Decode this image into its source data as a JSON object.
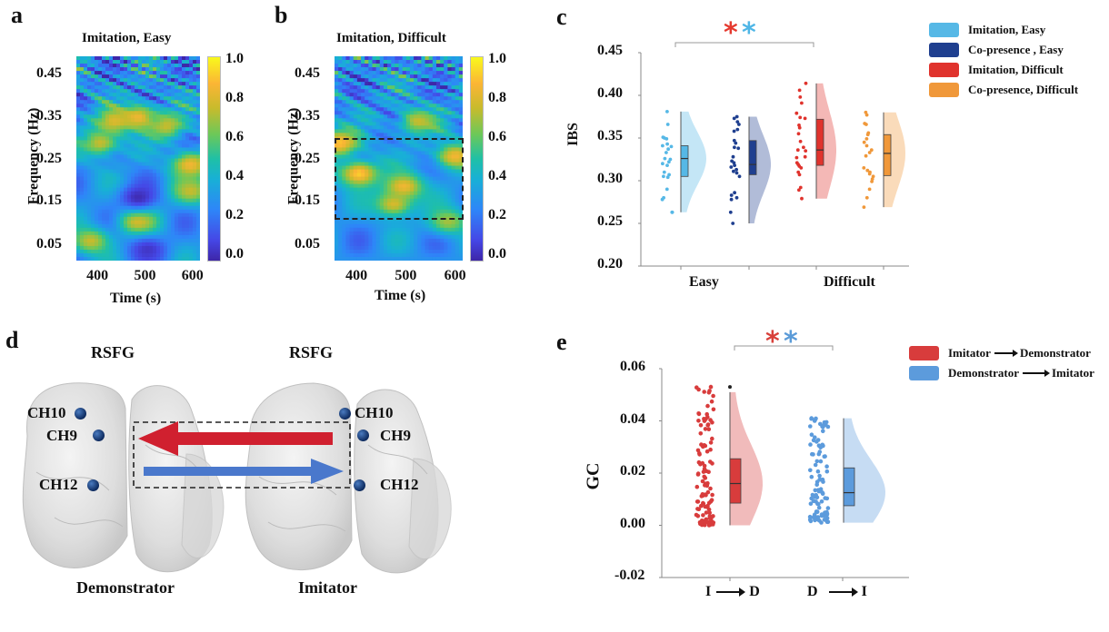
{
  "panels": {
    "a": {
      "label": "a",
      "title": "Imitation, Easy",
      "ylabel": "Frequency (Hz)",
      "xlabel": "Time (s)",
      "yticks": [
        "0.45",
        "0.35",
        "0.25",
        "0.15",
        "0.05"
      ],
      "xticks": [
        "400",
        "500",
        "600"
      ],
      "colorbar_ticks": [
        "1.0",
        "0.8",
        "0.6",
        "0.4",
        "0.2",
        "0.0"
      ]
    },
    "b": {
      "label": "b",
      "title": "Imitation, Difficult",
      "ylabel": "Frequency (Hz)",
      "xlabel": "Time (s)",
      "yticks": [
        "0.45",
        "0.35",
        "0.25",
        "0.15",
        "0.05"
      ],
      "xticks": [
        "400",
        "500",
        "600"
      ],
      "colorbar_ticks": [
        "1.0",
        "0.8",
        "0.6",
        "0.4",
        "0.2",
        "0.0"
      ],
      "highlight_band_hz": [
        0.11,
        0.3
      ]
    },
    "c": {
      "label": "c",
      "ylabel": "IBS",
      "yticks": [
        "0.45",
        "0.40",
        "0.35",
        "0.30",
        "0.25",
        "0.20"
      ],
      "categories": [
        "Easy",
        "Difficult"
      ],
      "significance": {
        "marks": [
          "*",
          "*"
        ],
        "colors": [
          "#e53a2f",
          "#4fb6e6"
        ]
      },
      "legend": [
        {
          "label": "Imitation, Easy",
          "color": "#56b8e6"
        },
        {
          "label": "Co-presence , Easy",
          "color": "#1f3f8f"
        },
        {
          "label": "Imitation, Difficult",
          "color": "#e0332d"
        },
        {
          "label": "Co-presence, Difficult",
          "color": "#f0983a"
        }
      ]
    },
    "d": {
      "label": "d",
      "region_left": "RSFG",
      "region_right": "RSFG",
      "role_left": "Demonstrator",
      "role_right": "Imitator",
      "channels_left": [
        "CH10",
        "CH9",
        "CH12"
      ],
      "channels_right": [
        "CH10",
        "CH9",
        "CH12"
      ],
      "arrow_colors": {
        "imitator_to_demonstrator": "#d0202f",
        "demonstrator_to_imitator": "#4a78cc"
      }
    },
    "e": {
      "label": "e",
      "ylabel": "GC",
      "yticks": [
        "0.06",
        "0.04",
        "0.02",
        "0.00",
        "-0.02"
      ],
      "categories": [
        {
          "from": "I",
          "to": "D"
        },
        {
          "from": "D",
          "to": "I"
        }
      ],
      "significance": {
        "marks": [
          "*",
          "*"
        ],
        "colors": [
          "#d8403a",
          "#5b9bd8"
        ]
      },
      "legend": [
        {
          "from": "Imitator",
          "to": "Demonstrator",
          "color": "#d83c3c"
        },
        {
          "from": "Demonstrator",
          "to": "Imitator",
          "color": "#5c9bdc"
        }
      ]
    }
  },
  "chart_data": [
    {
      "id": "a",
      "type": "heatmap",
      "title": "Imitation, Easy",
      "xlabel": "Time (s)",
      "ylabel": "Frequency (Hz)",
      "xlim": [
        350,
        610
      ],
      "ylim": [
        0.02,
        0.49
      ],
      "clim": [
        0.0,
        1.0
      ],
      "colormap": "parula",
      "features": [
        {
          "t": 480,
          "f": 0.35,
          "v": 0.85
        },
        {
          "t": 430,
          "f": 0.34,
          "v": 0.8
        },
        {
          "t": 540,
          "f": 0.33,
          "v": 0.75
        },
        {
          "t": 590,
          "f": 0.24,
          "v": 0.85
        },
        {
          "t": 400,
          "f": 0.29,
          "v": 0.75
        },
        {
          "t": 480,
          "f": 0.11,
          "v": 0.8
        },
        {
          "t": 590,
          "f": 0.18,
          "v": 0.75
        },
        {
          "t": 380,
          "f": 0.065,
          "v": 0.75
        },
        {
          "t": 480,
          "f": 0.165,
          "v": 0.02
        },
        {
          "t": 500,
          "f": 0.045,
          "v": 0.05
        }
      ]
    },
    {
      "id": "b",
      "type": "heatmap",
      "title": "Imitation, Difficult",
      "xlabel": "Time (s)",
      "ylabel": "Frequency (Hz)",
      "xlim": [
        350,
        610
      ],
      "ylim": [
        0.02,
        0.49
      ],
      "clim": [
        0.0,
        1.0
      ],
      "colormap": "parula",
      "features": [
        {
          "t": 400,
          "f": 0.22,
          "v": 0.92
        },
        {
          "t": 490,
          "f": 0.19,
          "v": 0.85
        },
        {
          "t": 470,
          "f": 0.15,
          "v": 0.78
        },
        {
          "t": 360,
          "f": 0.29,
          "v": 0.9
        },
        {
          "t": 595,
          "f": 0.26,
          "v": 0.85
        },
        {
          "t": 520,
          "f": 0.34,
          "v": 0.75
        },
        {
          "t": 580,
          "f": 0.11,
          "v": 0.7
        }
      ]
    },
    {
      "id": "c",
      "type": "raincloud",
      "ylabel": "IBS",
      "ylim": [
        0.2,
        0.45
      ],
      "categories": [
        "Easy",
        "Difficult"
      ],
      "series": [
        {
          "name": "Imitation, Easy",
          "category": "Easy",
          "color": "#56b8e6",
          "box": {
            "q1": 0.305,
            "median": 0.326,
            "q3": 0.341,
            "min": 0.263,
            "max": 0.381
          },
          "points": [
            0.381,
            0.366,
            0.351,
            0.35,
            0.349,
            0.343,
            0.341,
            0.34,
            0.337,
            0.333,
            0.326,
            0.325,
            0.322,
            0.32,
            0.318,
            0.31,
            0.307,
            0.305,
            0.304,
            0.29,
            0.28,
            0.278,
            0.263,
            0.263
          ]
        },
        {
          "name": "Co-presence , Easy",
          "category": "Easy",
          "color": "#1f3f8f",
          "box": {
            "q1": 0.307,
            "median": 0.319,
            "q3": 0.347,
            "min": 0.25,
            "max": 0.375
          },
          "points": [
            0.375,
            0.373,
            0.369,
            0.366,
            0.36,
            0.358,
            0.347,
            0.344,
            0.339,
            0.338,
            0.328,
            0.323,
            0.321,
            0.318,
            0.316,
            0.313,
            0.311,
            0.309,
            0.305,
            0.286,
            0.283,
            0.28,
            0.278,
            0.263,
            0.25
          ]
        },
        {
          "name": "Imitation, Difficult",
          "category": "Difficult",
          "color": "#e0332d",
          "box": {
            "q1": 0.318,
            "median": 0.336,
            "q3": 0.372,
            "min": 0.279,
            "max": 0.414
          },
          "points": [
            0.414,
            0.406,
            0.398,
            0.391,
            0.379,
            0.374,
            0.373,
            0.365,
            0.362,
            0.355,
            0.346,
            0.339,
            0.336,
            0.335,
            0.328,
            0.327,
            0.321,
            0.319,
            0.317,
            0.315,
            0.31,
            0.307,
            0.292,
            0.289,
            0.279
          ]
        },
        {
          "name": "Co-presence, Difficult",
          "category": "Difficult",
          "color": "#f0983a",
          "box": {
            "q1": 0.306,
            "median": 0.332,
            "q3": 0.354,
            "min": 0.269,
            "max": 0.38
          },
          "points": [
            0.38,
            0.377,
            0.367,
            0.366,
            0.356,
            0.354,
            0.349,
            0.345,
            0.341,
            0.336,
            0.333,
            0.329,
            0.315,
            0.312,
            0.31,
            0.308,
            0.305,
            0.302,
            0.299,
            0.29,
            0.28,
            0.269
          ]
        }
      ],
      "significance": {
        "between": [
          "Easy",
          "Difficult"
        ],
        "label": "**"
      }
    },
    {
      "id": "e",
      "type": "raincloud",
      "ylabel": "GC",
      "ylim": [
        -0.02,
        0.06
      ],
      "categories": [
        "I → D",
        "D → I"
      ],
      "series": [
        {
          "name": "Imitator → Demonstrator",
          "category": "I → D",
          "color": "#d83c3c",
          "box": {
            "q1": 0.0085,
            "median": 0.016,
            "q3": 0.0255,
            "min": 0.0,
            "max": 0.051,
            "outlier": 0.053
          },
          "n_points": 110,
          "range": [
            0.0,
            0.053
          ]
        },
        {
          "name": "Demonstrator → Imitator",
          "category": "D → I",
          "color": "#5c9bdc",
          "box": {
            "q1": 0.0075,
            "median": 0.0125,
            "q3": 0.022,
            "min": 0.001,
            "max": 0.041
          },
          "n_points": 100,
          "range": [
            0.001,
            0.041
          ]
        }
      ],
      "significance": {
        "between": [
          "I → D",
          "D → I"
        ],
        "label": "**"
      }
    }
  ]
}
